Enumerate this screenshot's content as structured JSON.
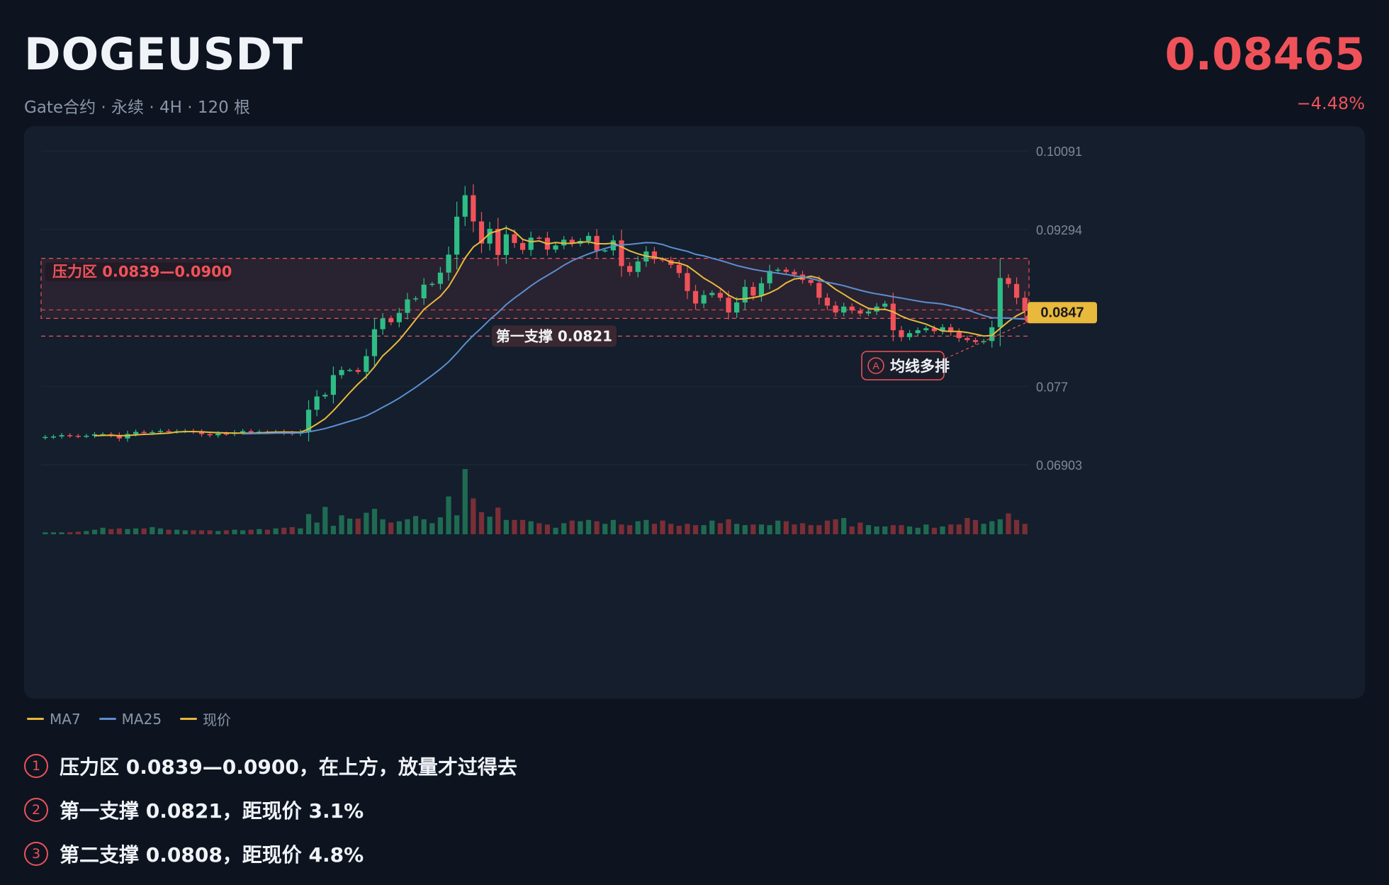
{
  "header": {
    "symbol": "DOGEUSDT",
    "subtitle": "Gate合约 · 永续 · 4H · 120 根",
    "price": "0.08465",
    "change": "−4.48%"
  },
  "colors": {
    "up": "#2ebd85",
    "down": "#f0525a",
    "ma7": "#e8b93c",
    "ma25": "#5b8fd0",
    "resistance": "#f0525a",
    "price_tag": "#e8b93c"
  },
  "legend": [
    {
      "label": "MA7",
      "color": "#e8b93c"
    },
    {
      "label": "MA25",
      "color": "#5b8fd0"
    },
    {
      "label": "现价",
      "color": "#e8b93c"
    }
  ],
  "notes": [
    {
      "num": "1",
      "text": "压力区 0.0839—0.0900，在上方，放量才过得去"
    },
    {
      "num": "2",
      "text": "第一支撑 0.0821，距现价 3.1%"
    },
    {
      "num": "3",
      "text": "第二支撑 0.0808，距现价 4.8%"
    }
  ],
  "chart_data": {
    "type": "candlestick",
    "y_ticks": [
      "0.10091",
      "0.09294",
      "0.077",
      "0.06903"
    ],
    "y_tick_values": [
      0.10091,
      0.09294,
      0.077,
      0.06903
    ],
    "ylim": [
      0.06903,
      0.10091
    ],
    "candle_count": 120,
    "resistance_zone": {
      "label": "压力区 0.0839—0.0900",
      "low": 0.0839,
      "high": 0.09
    },
    "support": {
      "label": "第一支撑 0.0821",
      "value": 0.0821
    },
    "current_price": {
      "label": "0.0847",
      "value": 0.0847
    },
    "annotation": {
      "marker": "A",
      "label": "均线多排"
    },
    "closes": [
      0.07186,
      0.07191,
      0.07204,
      0.07198,
      0.07194,
      0.07198,
      0.07213,
      0.07214,
      0.07203,
      0.07171,
      0.07216,
      0.07237,
      0.07232,
      0.07236,
      0.07247,
      0.07239,
      0.07244,
      0.07248,
      0.07238,
      0.07215,
      0.07203,
      0.07221,
      0.07217,
      0.07232,
      0.07245,
      0.07233,
      0.07239,
      0.07238,
      0.0724,
      0.07227,
      0.0722,
      0.07238,
      0.07462,
      0.07597,
      0.07614,
      0.07814,
      0.07866,
      0.07866,
      0.07847,
      0.08007,
      0.0828,
      0.08388,
      0.08351,
      0.08446,
      0.08583,
      0.08594,
      0.08733,
      0.08741,
      0.08855,
      0.09038,
      0.09423,
      0.09641,
      0.09375,
      0.0915,
      0.093,
      0.09034,
      0.09244,
      0.09156,
      0.09086,
      0.0921,
      0.09209,
      0.09089,
      0.09131,
      0.09189,
      0.09149,
      0.09177,
      0.09228,
      0.09078,
      0.09081,
      0.09182,
      0.08922,
      0.08862,
      0.08968,
      0.0907,
      0.08991,
      0.08982,
      0.08934,
      0.0885,
      0.08668,
      0.08541,
      0.08627,
      0.08649,
      0.086,
      0.0845,
      0.08552,
      0.0871,
      0.08622,
      0.08747,
      0.08873,
      0.08885,
      0.08863,
      0.08835,
      0.0878,
      0.0875,
      0.086,
      0.0852,
      0.0845,
      0.0851,
      0.0847,
      0.0844,
      0.0846,
      0.0851,
      0.0854,
      0.0827,
      0.082,
      0.0824,
      0.0827,
      0.0829,
      0.0826,
      0.083,
      0.0825,
      0.0819,
      0.0817,
      0.0815,
      0.0816,
      0.083,
      0.088,
      0.0874,
      0.086,
      0.08465
    ],
    "volumes": [
      3,
      3,
      3,
      3,
      4,
      5,
      7,
      10,
      8,
      9,
      8,
      9,
      9,
      11,
      9,
      7,
      7,
      6,
      6,
      6,
      6,
      5,
      6,
      7,
      6,
      7,
      8,
      7,
      9,
      10,
      11,
      9,
      31,
      18,
      42,
      13,
      29,
      24,
      24,
      33,
      39,
      23,
      18,
      20,
      23,
      28,
      23,
      17,
      26,
      58,
      29,
      100,
      55,
      34,
      27,
      41,
      22,
      22,
      22,
      20,
      17,
      15,
      10,
      17,
      21,
      20,
      22,
      20,
      16,
      22,
      15,
      14,
      20,
      22,
      16,
      21,
      16,
      13,
      16,
      14,
      14,
      21,
      17,
      23,
      16,
      14,
      15,
      15,
      14,
      21,
      20,
      15,
      17,
      14,
      14,
      21,
      23,
      25,
      12,
      18,
      14,
      12,
      12,
      14,
      14,
      12,
      10,
      15,
      10,
      12,
      15,
      15,
      25,
      22,
      16,
      20,
      23,
      32,
      22,
      16
    ],
    "series": [
      {
        "name": "MA7",
        "color": "#e8b93c"
      },
      {
        "name": "MA25",
        "color": "#5b8fd0"
      }
    ]
  }
}
